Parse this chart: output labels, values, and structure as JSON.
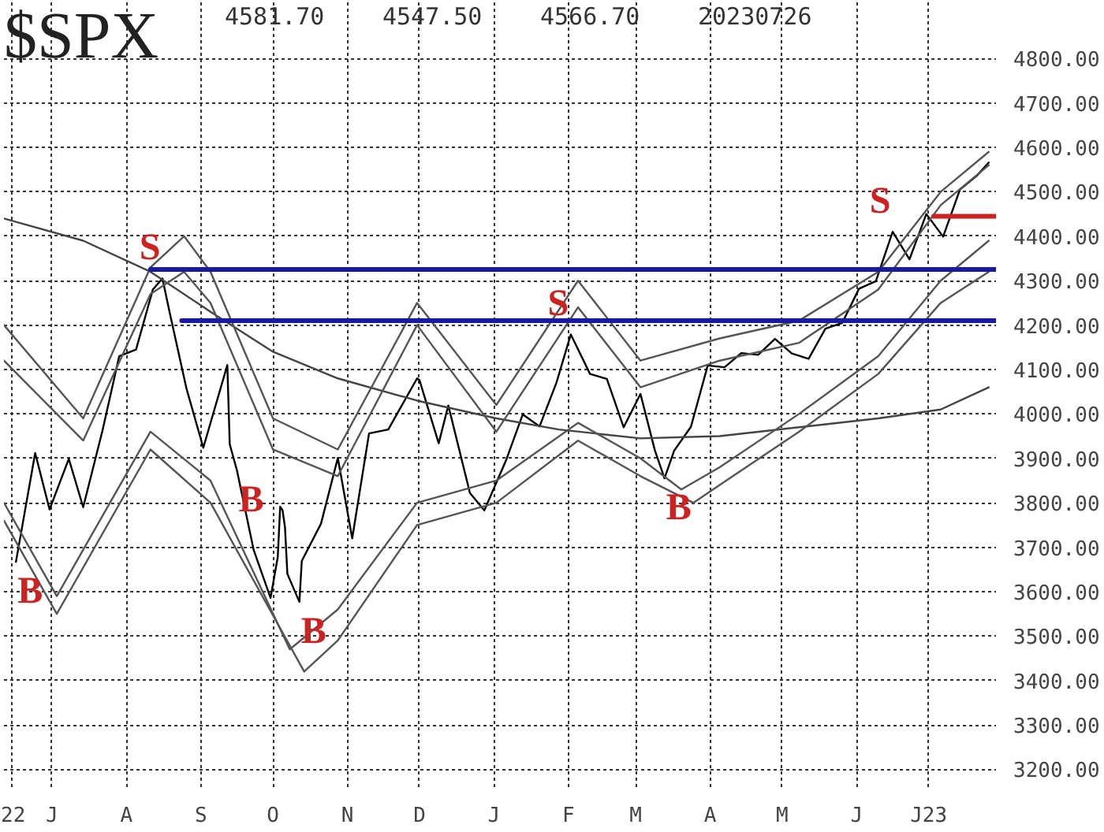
{
  "chart_data": {
    "type": "line",
    "title": "$SPX",
    "annotations": [
      "4581.70",
      "4547.50",
      "4566.70",
      "20230726",
      {
        "text": "S",
        "x": "2022-08-16",
        "y": 4305
      },
      {
        "text": "B",
        "x": "2022-06-16",
        "y": 3667
      },
      {
        "text": "B",
        "x": "2022-09-16",
        "y": 3873
      },
      {
        "text": "B",
        "x": "2022-10-12",
        "y": 3577
      },
      {
        "text": "S",
        "x": "2023-02-02",
        "y": 4179
      },
      {
        "text": "B",
        "x": "2023-03-13",
        "y": 3855
      },
      {
        "text": "S",
        "x": "2023-06-16",
        "y": 4410
      }
    ],
    "series": [
      {
        "color": "#000000",
        "x": [
          "2022-06-16",
          "2022-06-24",
          "2022-06-30",
          "2022-07-08",
          "2022-07-14",
          "2022-07-22",
          "2022-07-29",
          "2022-08-05",
          "2022-08-12",
          "2022-08-16",
          "2022-08-19",
          "2022-08-26",
          "2022-09-02",
          "2022-09-12",
          "2022-09-13",
          "2022-09-16",
          "2022-09-23",
          "2022-09-30",
          "2022-10-03",
          "2022-10-04",
          "2022-10-05",
          "2022-10-06",
          "2022-10-07",
          "2022-10-12",
          "2022-10-13",
          "2022-10-21",
          "2022-10-28",
          "2022-11-03",
          "2022-11-10",
          "2022-11-18",
          "2022-11-30",
          "2022-12-01",
          "2022-12-09",
          "2022-12-13",
          "2022-12-22",
          "2022-12-28",
          "2023-01-06",
          "2023-01-13",
          "2023-01-20",
          "2023-01-27",
          "2023-02-02",
          "2023-02-10",
          "2023-02-17",
          "2023-02-24",
          "2023-03-03",
          "2023-03-09",
          "2023-03-13",
          "2023-03-17",
          "2023-03-24",
          "2023-03-31",
          "2023-04-07",
          "2023-04-14",
          "2023-04-21",
          "2023-04-28",
          "2023-05-05",
          "2023-05-12",
          "2023-05-19",
          "2023-05-26",
          "2023-06-02",
          "2023-06-09",
          "2023-06-16",
          "2023-06-23",
          "2023-06-30",
          "2023-07-07",
          "2023-07-14",
          "2023-07-21",
          "2023-07-26"
        ],
        "values": [
          3667,
          3912,
          3785,
          3899,
          3790,
          3962,
          4130,
          4145,
          4280,
          4305,
          4228,
          4057,
          3924,
          4110,
          3932,
          3873,
          3693,
          3586,
          3678,
          3791,
          3783,
          3745,
          3640,
          3577,
          3669,
          3753,
          3901,
          3720,
          3956,
          3965,
          4080,
          4076,
          3934,
          4019,
          3822,
          3783,
          3895,
          3999,
          3972,
          4070,
          4179,
          4090,
          4079,
          3970,
          4045,
          3918,
          3855,
          3917,
          3971,
          4109,
          4105,
          4137,
          4133,
          4169,
          4136,
          4124,
          4192,
          4205,
          4282,
          4299,
          4410,
          4348,
          4450,
          4399,
          4505,
          4536,
          4566
        ]
      },
      {
        "color": "#444444",
        "x": [
          "2022-06-11",
          "2022-07-14",
          "2022-08-11",
          "2022-09-05",
          "2022-10-01",
          "2022-10-28",
          "2022-11-30",
          "2023-01-02",
          "2023-01-28",
          "2023-03-03",
          "2023-04-05",
          "2023-05-08",
          "2023-06-10",
          "2023-07-06",
          "2023-07-26"
        ],
        "values": [
          4440,
          4390,
          4320,
          4230,
          4140,
          4080,
          4030,
          3990,
          3965,
          3945,
          3950,
          3970,
          3990,
          4010,
          4060
        ]
      },
      {
        "color": "#555555",
        "x": [
          "2022-06-11",
          "2022-07-14",
          "2022-08-11",
          "2022-08-25",
          "2022-09-05",
          "2022-10-01",
          "2022-10-28",
          "2022-11-30",
          "2023-01-02",
          "2023-02-05",
          "2023-03-03",
          "2023-04-05",
          "2023-05-08",
          "2023-06-10",
          "2023-07-06",
          "2023-07-26"
        ],
        "values": [
          4200,
          3990,
          4330,
          4400,
          4320,
          3990,
          3920,
          4250,
          4020,
          4300,
          4120,
          4170,
          4210,
          4320,
          4500,
          4590
        ]
      },
      {
        "color": "#555555",
        "x": [
          "2022-06-11",
          "2022-07-14",
          "2022-08-11",
          "2022-08-25",
          "2022-09-05",
          "2022-10-01",
          "2022-10-28",
          "2022-11-30",
          "2023-01-02",
          "2023-02-05",
          "2023-03-03",
          "2023-04-05",
          "2023-05-08",
          "2023-06-10",
          "2023-07-06",
          "2023-07-26"
        ],
        "values": [
          4120,
          3940,
          4270,
          4320,
          4250,
          3920,
          3860,
          4200,
          3960,
          4240,
          4060,
          4120,
          4160,
          4280,
          4470,
          4560
        ]
      },
      {
        "color": "#555555",
        "x": [
          "2022-06-11",
          "2022-07-03",
          "2022-08-11",
          "2022-09-05",
          "2022-10-08",
          "2022-10-28",
          "2022-11-30",
          "2023-01-02",
          "2023-02-05",
          "2023-03-03",
          "2023-03-20",
          "2023-04-05",
          "2023-05-08",
          "2023-06-10",
          "2023-07-06",
          "2023-07-26"
        ],
        "values": [
          3800,
          3590,
          3960,
          3850,
          3470,
          3560,
          3800,
          3850,
          3980,
          3900,
          3830,
          3880,
          4000,
          4130,
          4300,
          4390
        ]
      },
      {
        "color": "#555555",
        "x": [
          "2022-06-11",
          "2022-07-03",
          "2022-08-11",
          "2022-09-05",
          "2022-10-14",
          "2022-10-28",
          "2022-11-30",
          "2023-01-02",
          "2023-02-05",
          "2023-03-03",
          "2023-03-25",
          "2023-04-05",
          "2023-05-08",
          "2023-06-10",
          "2023-07-06",
          "2023-07-26"
        ],
        "values": [
          3760,
          3550,
          3920,
          3800,
          3420,
          3490,
          3750,
          3800,
          3940,
          3860,
          3800,
          3840,
          3960,
          4090,
          4250,
          4320
        ]
      },
      {
        "color": "#1a1aa0",
        "x": [
          "2022-08-11",
          "2023-07-29"
        ],
        "values": [
          4325,
          4325
        ]
      },
      {
        "color": "#1a1aa0",
        "x": [
          "2022-08-24",
          "2023-07-29"
        ],
        "values": [
          4210,
          4210
        ]
      },
      {
        "color": "#cc2222",
        "x": [
          "2023-07-03",
          "2023-07-29"
        ],
        "values": [
          4445,
          4445
        ]
      }
    ],
    "xlim": [
      "2022-06-11",
      "2023-07-29"
    ],
    "xticks": [
      {
        "value": "2022-06-14",
        "label": "22"
      },
      {
        "value": "2022-07-01",
        "label": "J"
      },
      {
        "value": "2022-08-01",
        "label": "A"
      },
      {
        "value": "2022-09-01",
        "label": "S"
      },
      {
        "value": "2022-10-01",
        "label": "O"
      },
      {
        "value": "2022-11-01",
        "label": "N"
      },
      {
        "value": "2022-12-01",
        "label": "D"
      },
      {
        "value": "2023-01-01",
        "label": "J"
      },
      {
        "value": "2023-02-01",
        "label": "F"
      },
      {
        "value": "2023-03-01",
        "label": "M"
      },
      {
        "value": "2023-04-01",
        "label": "A"
      },
      {
        "value": "2023-05-01",
        "label": "M"
      },
      {
        "value": "2023-06-01",
        "label": "J"
      },
      {
        "value": "2023-07-01",
        "label": "J23"
      }
    ],
    "ylim": [
      3160,
      4930
    ],
    "yticks": [
      {
        "value": 3200,
        "label": "3200.00"
      },
      {
        "value": 3300,
        "label": "3300.00"
      },
      {
        "value": 3400,
        "label": "3400.00"
      },
      {
        "value": 3500,
        "label": "3500.00"
      },
      {
        "value": 3600,
        "label": "3600.00"
      },
      {
        "value": 3700,
        "label": "3700.00"
      },
      {
        "value": 3800,
        "label": "3800.00"
      },
      {
        "value": 3900,
        "label": "3900.00"
      },
      {
        "value": 4000,
        "label": "4000.00"
      },
      {
        "value": 4100,
        "label": "4100.00"
      },
      {
        "value": 4200,
        "label": "4200.00"
      },
      {
        "value": 4300,
        "label": "4300.00"
      },
      {
        "value": 4400,
        "label": "4400.00"
      },
      {
        "value": 4500,
        "label": "4500.00"
      },
      {
        "value": 4600,
        "label": "4600.00"
      },
      {
        "value": 4700,
        "label": "4700.00"
      },
      {
        "value": 4800,
        "label": "4800.00"
      }
    ],
    "grid": true,
    "marker": "none",
    "line_style": "solid"
  }
}
